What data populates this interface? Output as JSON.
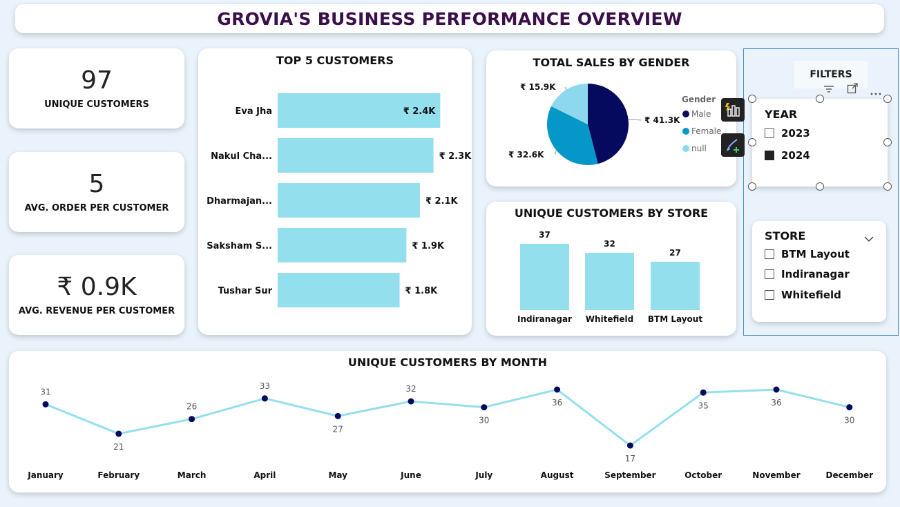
{
  "header": {
    "title": "GROVIA'S BUSINESS PERFORMANCE OVERVIEW"
  },
  "kpis": [
    {
      "value": "97",
      "label": "UNIQUE CUSTOMERS"
    },
    {
      "value": "5",
      "label": "AVG. ORDER PER CUSTOMER"
    },
    {
      "value": "₹ 0.9K",
      "label": "AVG. REVENUE PER CUSTOMER"
    }
  ],
  "top_customers": {
    "title": "TOP 5 CUSTOMERS",
    "names": [
      "Eva Jha",
      "Nakul Cha...",
      "Dharmajan...",
      "Saksham S...",
      "Tushar Sur"
    ],
    "labels": [
      "₹ 2.4K",
      "₹ 2.3K",
      "₹ 2.1K",
      "₹ 1.9K",
      "₹ 1.8K"
    ]
  },
  "gender": {
    "title": "TOTAL SALES BY GENDER",
    "legend_title": "Gender",
    "slice_labels": [
      "₹ 41.3K",
      "₹ 32.6K",
      "₹ 15.9K"
    ],
    "legend": [
      "Male",
      "Female",
      "null"
    ]
  },
  "store_chart": {
    "title": "UNIQUE CUSTOMERS BY STORE"
  },
  "month_chart": {
    "title": "UNIQUE CUSTOMERS BY MONTH"
  },
  "filters": {
    "label": "FILTERS",
    "year": {
      "title": "YEAR",
      "options": [
        "2023",
        "2024"
      ],
      "checked": [
        false,
        true
      ]
    },
    "store": {
      "title": "STORE",
      "options": [
        "BTM Layout",
        "Indiranagar",
        "Whitefield"
      ],
      "checked": [
        false,
        false,
        false
      ]
    }
  },
  "icons": {
    "filter": "filter-icon",
    "focus": "focus-mode-icon",
    "more": "more-options-icon",
    "build": "build-visual-icon",
    "format": "format-visual-icon",
    "dropdown": "chevron-down-icon"
  },
  "colors": {
    "bar": "#94dfee",
    "male": "#050a5e",
    "female": "#0497c8",
    "null": "#8dd8ec",
    "line": "#94dfee",
    "point": "#050a5e",
    "title": "#3b0f4a"
  },
  "chart_data": [
    {
      "type": "bar",
      "orientation": "horizontal",
      "title": "TOP 5 CUSTOMERS",
      "categories": [
        "Eva Jha",
        "Nakul Cha...",
        "Dharmajan...",
        "Saksham S...",
        "Tushar Sur"
      ],
      "values": [
        2.4,
        2.3,
        2.1,
        1.9,
        1.8
      ],
      "data_labels": [
        "₹ 2.4K",
        "₹ 2.3K",
        "₹ 2.1K",
        "₹ 1.9K",
        "₹ 1.8K"
      ],
      "xlim": [
        0,
        2.6
      ]
    },
    {
      "type": "pie",
      "title": "TOTAL SALES BY GENDER",
      "categories": [
        "Male",
        "Female",
        "null"
      ],
      "values": [
        41.3,
        32.6,
        15.9
      ],
      "data_labels": [
        "₹ 41.3K",
        "₹ 32.6K",
        "₹ 15.9K"
      ],
      "legend_title": "Gender",
      "legend": "right"
    },
    {
      "type": "bar",
      "title": "UNIQUE CUSTOMERS BY STORE",
      "categories": [
        "Indiranagar",
        "Whitefield",
        "BTM Layout"
      ],
      "values": [
        37,
        32,
        27
      ],
      "ylim": [
        0,
        37
      ]
    },
    {
      "type": "line",
      "title": "UNIQUE CUSTOMERS BY MONTH",
      "categories": [
        "January",
        "February",
        "March",
        "April",
        "May",
        "June",
        "July",
        "August",
        "September",
        "October",
        "November",
        "December"
      ],
      "values": [
        31,
        21,
        26,
        33,
        27,
        32,
        30,
        36,
        17,
        35,
        36,
        30
      ],
      "data_label_position": [
        "above",
        "below",
        "above",
        "above",
        "below",
        "above",
        "below",
        "below",
        "below",
        "below",
        "below",
        "below"
      ],
      "ylim": [
        17,
        36
      ]
    }
  ]
}
